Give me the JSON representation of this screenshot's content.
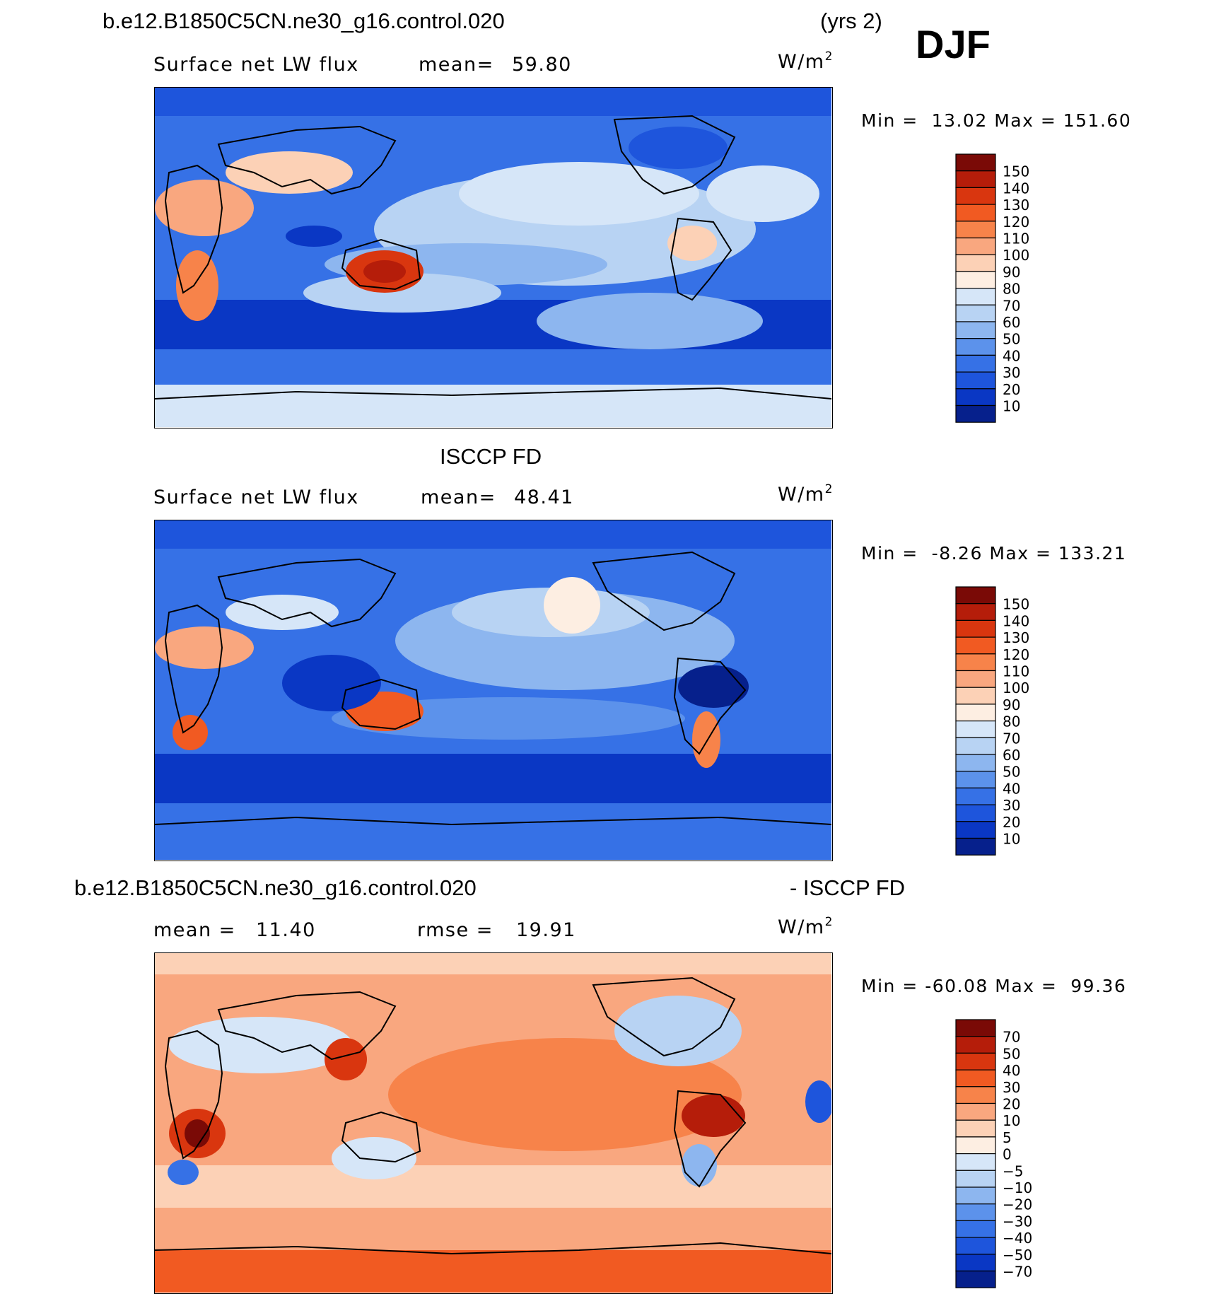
{
  "header": {
    "case_name": "b.e12.B1850C5CN.ne30_g16.control.020",
    "years": "(yrs 2)",
    "season": "DJF"
  },
  "chart_data": [
    {
      "type": "heatmap",
      "title": "Surface net LW flux",
      "mean_label": "mean=",
      "mean_value": "59.80",
      "units": "W/m",
      "units_sup": "2",
      "min_label": "Min =",
      "min_value": "13.02",
      "max_label": "Max =",
      "max_value": "151.60",
      "colorbar": {
        "levels": [
          "150",
          "140",
          "130",
          "120",
          "110",
          "100",
          "90",
          "80",
          "70",
          "60",
          "50",
          "40",
          "30",
          "20",
          "10"
        ],
        "colors": [
          "#7a0a06",
          "#b51d0a",
          "#d9360f",
          "#f15a22",
          "#f7834a",
          "#f9a77f",
          "#fcd1b6",
          "#fdeee2",
          "#d6e6f8",
          "#b8d3f3",
          "#8db6ef",
          "#5c92eb",
          "#3671e6",
          "#1e55dc",
          "#0a37c4",
          "#06208c"
        ]
      }
    },
    {
      "type": "heatmap",
      "title": "ISCCP FD",
      "subtitle": "Surface net LW flux",
      "mean_label": "mean=",
      "mean_value": "48.41",
      "units": "W/m",
      "units_sup": "2",
      "min_label": "Min =",
      "min_value": "-8.26",
      "max_label": "Max =",
      "max_value": "133.21",
      "colorbar": {
        "levels": [
          "150",
          "140",
          "130",
          "120",
          "110",
          "100",
          "90",
          "80",
          "70",
          "60",
          "50",
          "40",
          "30",
          "20",
          "10"
        ],
        "colors": [
          "#7a0a06",
          "#b51d0a",
          "#d9360f",
          "#f15a22",
          "#f7834a",
          "#f9a77f",
          "#fcd1b6",
          "#fdeee2",
          "#d6e6f8",
          "#b8d3f3",
          "#8db6ef",
          "#5c92eb",
          "#3671e6",
          "#1e55dc",
          "#0a37c4",
          "#06208c"
        ]
      }
    },
    {
      "type": "heatmap",
      "title_left": "b.e12.B1850C5CN.ne30_g16.control.020",
      "title_right": "- ISCCP FD",
      "mean_label": "mean =",
      "mean_value": "11.40",
      "rmse_label": "rmse =",
      "rmse_value": "19.91",
      "units": "W/m",
      "units_sup": "2",
      "min_label": "Min =",
      "min_value": "-60.08",
      "max_label": "Max =",
      "max_value": "99.36",
      "colorbar": {
        "levels": [
          "70",
          "50",
          "40",
          "30",
          "20",
          "10",
          "5",
          "0",
          "-5",
          "-10",
          "-20",
          "-30",
          "-40",
          "-50",
          "-70"
        ],
        "colors": [
          "#7a0a06",
          "#b51d0a",
          "#d9360f",
          "#f15a22",
          "#f7834a",
          "#f9a77f",
          "#fcd1b6",
          "#fdeee2",
          "#d6e6f8",
          "#b8d3f3",
          "#8db6ef",
          "#5c92eb",
          "#3671e6",
          "#1e55dc",
          "#0a37c4",
          "#06208c"
        ]
      }
    }
  ]
}
